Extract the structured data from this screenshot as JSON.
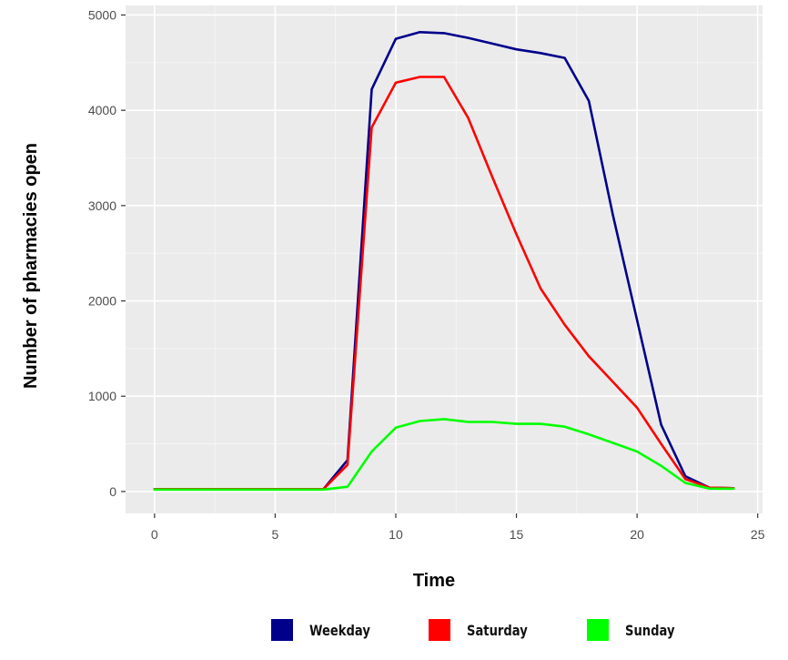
{
  "chart_data": {
    "type": "line",
    "title": "",
    "xlabel": "Time",
    "ylabel": "Number of pharmacies open",
    "xlim": [
      -1.2,
      25.2
    ],
    "ylim": [
      -230,
      5100
    ],
    "x_ticks": [
      0,
      5,
      10,
      15,
      20,
      25
    ],
    "y_ticks": [
      0,
      1000,
      2000,
      3000,
      4000,
      5000
    ],
    "grid": true,
    "legend_position": "bottom",
    "series": [
      {
        "name": "Weekday",
        "color": "#00008b",
        "x": [
          0,
          1,
          2,
          3,
          4,
          5,
          6,
          7,
          8,
          9,
          10,
          11,
          12,
          13,
          14,
          15,
          16,
          17,
          18,
          19,
          20,
          21,
          22,
          23,
          24
        ],
        "values": [
          25,
          25,
          25,
          25,
          25,
          25,
          25,
          25,
          330,
          4220,
          4750,
          4820,
          4810,
          4760,
          4700,
          4640,
          4600,
          4550,
          4100,
          2900,
          1800,
          700,
          160,
          40,
          35
        ]
      },
      {
        "name": "Saturday",
        "color": "#ff0000",
        "x": [
          0,
          1,
          2,
          3,
          4,
          5,
          6,
          7,
          8,
          9,
          10,
          11,
          12,
          13,
          14,
          15,
          16,
          17,
          18,
          19,
          20,
          21,
          22,
          23,
          24
        ],
        "values": [
          25,
          25,
          25,
          25,
          25,
          25,
          25,
          25,
          280,
          3820,
          4290,
          4350,
          4350,
          3920,
          3300,
          2700,
          2130,
          1750,
          1420,
          1150,
          880,
          500,
          130,
          40,
          35
        ]
      },
      {
        "name": "Sunday",
        "color": "#00ff00",
        "x": [
          0,
          1,
          2,
          3,
          4,
          5,
          6,
          7,
          8,
          9,
          10,
          11,
          12,
          13,
          14,
          15,
          16,
          17,
          18,
          19,
          20,
          21,
          22,
          23,
          24
        ],
        "values": [
          20,
          20,
          20,
          20,
          20,
          20,
          20,
          20,
          50,
          420,
          670,
          740,
          760,
          730,
          730,
          710,
          710,
          680,
          600,
          510,
          420,
          270,
          90,
          30,
          30
        ]
      }
    ]
  }
}
